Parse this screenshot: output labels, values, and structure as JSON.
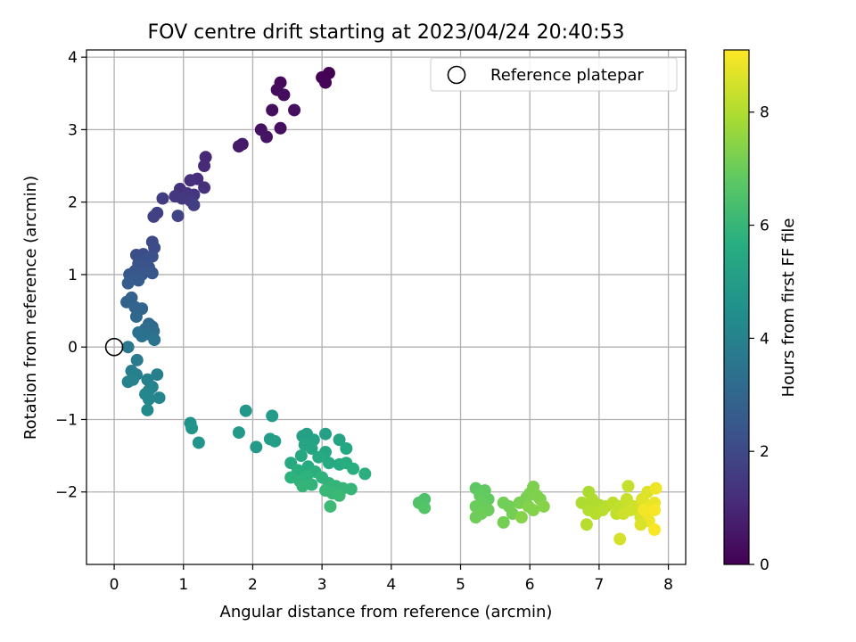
{
  "chart_data": {
    "type": "scatter",
    "title": "FOV centre drift starting at 2023/04/24 20:40:53",
    "xlabel": "Angular distance from reference (arcmin)",
    "ylabel": "Rotation from reference (arcmin)",
    "xlim": [
      -0.4,
      8.25
    ],
    "ylim": [
      -3.0,
      4.1
    ],
    "xticks": [
      0,
      1,
      2,
      3,
      4,
      5,
      6,
      7,
      8
    ],
    "yticks": [
      -2,
      -1,
      0,
      1,
      2,
      3,
      4
    ],
    "grid": true,
    "legend": {
      "position": "top-right",
      "entries": [
        "Reference platepar"
      ]
    },
    "reference_point": {
      "x": 0,
      "y": 0
    },
    "colorbar": {
      "label": "Hours from first FF file",
      "range": [
        0,
        9.1
      ],
      "ticks": [
        0,
        2,
        4,
        6,
        8
      ],
      "colormap": "viridis"
    },
    "points": [
      {
        "x": 3.1,
        "y": 3.78,
        "c": 0.0
      },
      {
        "x": 3.0,
        "y": 3.72,
        "c": 0.05
      },
      {
        "x": 3.05,
        "y": 3.65,
        "c": 0.1
      },
      {
        "x": 2.4,
        "y": 3.65,
        "c": 0.2
      },
      {
        "x": 2.35,
        "y": 3.55,
        "c": 0.25
      },
      {
        "x": 2.45,
        "y": 3.48,
        "c": 0.3
      },
      {
        "x": 2.28,
        "y": 3.27,
        "c": 0.35
      },
      {
        "x": 2.6,
        "y": 3.27,
        "c": 0.35
      },
      {
        "x": 2.4,
        "y": 3.02,
        "c": 0.4
      },
      {
        "x": 2.12,
        "y": 3.0,
        "c": 0.45
      },
      {
        "x": 2.2,
        "y": 2.9,
        "c": 0.5
      },
      {
        "x": 1.85,
        "y": 2.8,
        "c": 0.6
      },
      {
        "x": 1.8,
        "y": 2.77,
        "c": 0.65
      },
      {
        "x": 1.32,
        "y": 2.62,
        "c": 1.0
      },
      {
        "x": 1.3,
        "y": 2.5,
        "c": 1.05
      },
      {
        "x": 1.2,
        "y": 2.32,
        "c": 1.15
      },
      {
        "x": 1.1,
        "y": 2.3,
        "c": 1.2
      },
      {
        "x": 1.3,
        "y": 2.2,
        "c": 1.25
      },
      {
        "x": 0.95,
        "y": 2.18,
        "c": 1.3
      },
      {
        "x": 1.05,
        "y": 2.12,
        "c": 1.35
      },
      {
        "x": 1.15,
        "y": 2.1,
        "c": 1.4
      },
      {
        "x": 0.88,
        "y": 2.08,
        "c": 1.45
      },
      {
        "x": 0.98,
        "y": 2.05,
        "c": 1.5
      },
      {
        "x": 1.1,
        "y": 2.02,
        "c": 1.55
      },
      {
        "x": 0.7,
        "y": 2.05,
        "c": 1.6
      },
      {
        "x": 1.15,
        "y": 1.96,
        "c": 1.65
      },
      {
        "x": 0.62,
        "y": 1.85,
        "c": 1.7
      },
      {
        "x": 0.57,
        "y": 1.8,
        "c": 1.75
      },
      {
        "x": 0.92,
        "y": 1.81,
        "c": 1.8
      },
      {
        "x": 0.55,
        "y": 1.45,
        "c": 2.0
      },
      {
        "x": 0.58,
        "y": 1.37,
        "c": 2.05
      },
      {
        "x": 0.42,
        "y": 1.28,
        "c": 2.1
      },
      {
        "x": 0.32,
        "y": 1.27,
        "c": 2.15
      },
      {
        "x": 0.55,
        "y": 1.25,
        "c": 2.2
      },
      {
        "x": 0.45,
        "y": 1.2,
        "c": 2.25
      },
      {
        "x": 0.35,
        "y": 1.15,
        "c": 2.3
      },
      {
        "x": 0.5,
        "y": 1.1,
        "c": 2.35
      },
      {
        "x": 0.3,
        "y": 1.05,
        "c": 2.4
      },
      {
        "x": 0.22,
        "y": 1.0,
        "c": 2.45
      },
      {
        "x": 0.4,
        "y": 1.0,
        "c": 2.5
      },
      {
        "x": 0.55,
        "y": 1.02,
        "c": 2.5
      },
      {
        "x": 0.27,
        "y": 0.95,
        "c": 2.55
      },
      {
        "x": 0.35,
        "y": 0.92,
        "c": 2.6
      },
      {
        "x": 0.2,
        "y": 0.88,
        "c": 2.65
      },
      {
        "x": 0.25,
        "y": 0.68,
        "c": 2.8
      },
      {
        "x": 0.18,
        "y": 0.62,
        "c": 2.85
      },
      {
        "x": 0.3,
        "y": 0.55,
        "c": 2.9
      },
      {
        "x": 0.4,
        "y": 0.53,
        "c": 2.95
      },
      {
        "x": 0.32,
        "y": 0.42,
        "c": 3.0
      },
      {
        "x": 0.5,
        "y": 0.32,
        "c": 3.1
      },
      {
        "x": 0.55,
        "y": 0.28,
        "c": 3.15
      },
      {
        "x": 0.45,
        "y": 0.25,
        "c": 3.2
      },
      {
        "x": 0.57,
        "y": 0.22,
        "c": 3.25
      },
      {
        "x": 0.35,
        "y": 0.2,
        "c": 3.3
      },
      {
        "x": 0.48,
        "y": 0.18,
        "c": 3.35
      },
      {
        "x": 0.4,
        "y": 0.15,
        "c": 3.4
      },
      {
        "x": 0.58,
        "y": 0.1,
        "c": 3.45
      },
      {
        "x": 0.2,
        "y": 0.0,
        "c": 3.6
      },
      {
        "x": 0.33,
        "y": -0.18,
        "c": 3.75
      },
      {
        "x": 0.25,
        "y": -0.33,
        "c": 3.85
      },
      {
        "x": 0.32,
        "y": -0.38,
        "c": 3.9
      },
      {
        "x": 0.62,
        "y": -0.38,
        "c": 3.9
      },
      {
        "x": 0.48,
        "y": -0.45,
        "c": 3.95
      },
      {
        "x": 0.27,
        "y": -0.45,
        "c": 4.0
      },
      {
        "x": 0.2,
        "y": -0.48,
        "c": 4.0
      },
      {
        "x": 0.55,
        "y": -0.55,
        "c": 4.05
      },
      {
        "x": 0.5,
        "y": -0.6,
        "c": 4.1
      },
      {
        "x": 0.45,
        "y": -0.65,
        "c": 4.15
      },
      {
        "x": 0.65,
        "y": -0.7,
        "c": 4.15
      },
      {
        "x": 0.5,
        "y": -0.72,
        "c": 4.2
      },
      {
        "x": 0.48,
        "y": -0.87,
        "c": 4.3
      },
      {
        "x": 1.1,
        "y": -1.05,
        "c": 4.6
      },
      {
        "x": 1.12,
        "y": -1.12,
        "c": 4.65
      },
      {
        "x": 1.22,
        "y": -1.32,
        "c": 4.7
      },
      {
        "x": 1.9,
        "y": -0.88,
        "c": 4.8
      },
      {
        "x": 1.8,
        "y": -1.18,
        "c": 4.85
      },
      {
        "x": 2.05,
        "y": -1.38,
        "c": 4.9
      },
      {
        "x": 2.28,
        "y": -0.95,
        "c": 4.95
      },
      {
        "x": 2.25,
        "y": -1.27,
        "c": 5.0
      },
      {
        "x": 2.32,
        "y": -1.3,
        "c": 5.05
      },
      {
        "x": 2.78,
        "y": -1.2,
        "c": 5.1
      },
      {
        "x": 2.72,
        "y": -1.23,
        "c": 5.15
      },
      {
        "x": 3.05,
        "y": -1.2,
        "c": 5.15
      },
      {
        "x": 2.88,
        "y": -1.28,
        "c": 5.2
      },
      {
        "x": 3.25,
        "y": -1.28,
        "c": 5.25
      },
      {
        "x": 2.75,
        "y": -1.35,
        "c": 5.3
      },
      {
        "x": 2.85,
        "y": -1.4,
        "c": 5.35
      },
      {
        "x": 3.35,
        "y": -1.4,
        "c": 5.4
      },
      {
        "x": 3.05,
        "y": -1.45,
        "c": 5.4
      },
      {
        "x": 2.7,
        "y": -1.5,
        "c": 5.45
      },
      {
        "x": 2.95,
        "y": -1.52,
        "c": 5.5
      },
      {
        "x": 3.1,
        "y": -1.6,
        "c": 5.55
      },
      {
        "x": 2.55,
        "y": -1.6,
        "c": 5.55
      },
      {
        "x": 3.25,
        "y": -1.62,
        "c": 5.6
      },
      {
        "x": 2.8,
        "y": -1.65,
        "c": 5.6
      },
      {
        "x": 3.35,
        "y": -1.6,
        "c": 5.65
      },
      {
        "x": 2.65,
        "y": -1.7,
        "c": 5.7
      },
      {
        "x": 3.45,
        "y": -1.68,
        "c": 5.7
      },
      {
        "x": 2.9,
        "y": -1.72,
        "c": 5.75
      },
      {
        "x": 3.62,
        "y": -1.75,
        "c": 5.75
      },
      {
        "x": 2.78,
        "y": -1.78,
        "c": 5.8
      },
      {
        "x": 2.55,
        "y": -1.8,
        "c": 5.8
      },
      {
        "x": 3.0,
        "y": -1.8,
        "c": 5.85
      },
      {
        "x": 2.68,
        "y": -1.85,
        "c": 5.85
      },
      {
        "x": 3.1,
        "y": -1.88,
        "c": 5.9
      },
      {
        "x": 2.85,
        "y": -1.9,
        "c": 5.9
      },
      {
        "x": 2.72,
        "y": -1.92,
        "c": 5.95
      },
      {
        "x": 3.2,
        "y": -1.92,
        "c": 5.95
      },
      {
        "x": 3.3,
        "y": -1.95,
        "c": 6.0
      },
      {
        "x": 3.42,
        "y": -1.96,
        "c": 6.0
      },
      {
        "x": 3.05,
        "y": -1.98,
        "c": 6.05
      },
      {
        "x": 3.15,
        "y": -2.02,
        "c": 6.05
      },
      {
        "x": 3.25,
        "y": -2.05,
        "c": 6.1
      },
      {
        "x": 3.12,
        "y": -2.2,
        "c": 6.15
      },
      {
        "x": 4.48,
        "y": -2.1,
        "c": 6.5
      },
      {
        "x": 4.4,
        "y": -2.15,
        "c": 6.55
      },
      {
        "x": 4.48,
        "y": -2.22,
        "c": 6.6
      },
      {
        "x": 5.22,
        "y": -1.95,
        "c": 6.8
      },
      {
        "x": 5.35,
        "y": -1.98,
        "c": 6.85
      },
      {
        "x": 5.28,
        "y": -2.05,
        "c": 6.9
      },
      {
        "x": 5.4,
        "y": -2.1,
        "c": 6.9
      },
      {
        "x": 5.3,
        "y": -2.15,
        "c": 6.95
      },
      {
        "x": 5.22,
        "y": -2.2,
        "c": 7.0
      },
      {
        "x": 5.4,
        "y": -2.25,
        "c": 7.0
      },
      {
        "x": 5.3,
        "y": -2.3,
        "c": 7.05
      },
      {
        "x": 5.22,
        "y": -2.35,
        "c": 7.05
      },
      {
        "x": 5.62,
        "y": -2.15,
        "c": 7.1
      },
      {
        "x": 5.7,
        "y": -2.2,
        "c": 7.1
      },
      {
        "x": 5.75,
        "y": -2.3,
        "c": 7.15
      },
      {
        "x": 5.62,
        "y": -2.42,
        "c": 7.15
      },
      {
        "x": 5.85,
        "y": -2.15,
        "c": 7.2
      },
      {
        "x": 5.95,
        "y": -2.08,
        "c": 7.2
      },
      {
        "x": 6.05,
        "y": -1.93,
        "c": 7.25
      },
      {
        "x": 6.0,
        "y": -2.02,
        "c": 7.25
      },
      {
        "x": 6.1,
        "y": -2.05,
        "c": 7.3
      },
      {
        "x": 6.15,
        "y": -2.1,
        "c": 7.3
      },
      {
        "x": 5.98,
        "y": -2.2,
        "c": 7.35
      },
      {
        "x": 6.05,
        "y": -2.25,
        "c": 7.35
      },
      {
        "x": 6.2,
        "y": -2.2,
        "c": 7.4
      },
      {
        "x": 5.88,
        "y": -2.35,
        "c": 7.4
      },
      {
        "x": 6.85,
        "y": -2.0,
        "c": 7.9
      },
      {
        "x": 6.75,
        "y": -2.15,
        "c": 7.95
      },
      {
        "x": 6.9,
        "y": -2.1,
        "c": 8.0
      },
      {
        "x": 7.0,
        "y": -2.18,
        "c": 8.0
      },
      {
        "x": 6.85,
        "y": -2.25,
        "c": 8.05
      },
      {
        "x": 7.1,
        "y": -2.2,
        "c": 8.05
      },
      {
        "x": 6.95,
        "y": -2.3,
        "c": 8.1
      },
      {
        "x": 6.82,
        "y": -2.45,
        "c": 8.1
      },
      {
        "x": 7.05,
        "y": -2.25,
        "c": 8.15
      },
      {
        "x": 7.2,
        "y": -2.15,
        "c": 8.2
      },
      {
        "x": 7.3,
        "y": -2.2,
        "c": 8.25
      },
      {
        "x": 7.25,
        "y": -2.3,
        "c": 8.25
      },
      {
        "x": 7.42,
        "y": -1.92,
        "c": 8.3
      },
      {
        "x": 7.4,
        "y": -2.1,
        "c": 8.35
      },
      {
        "x": 7.5,
        "y": -2.2,
        "c": 8.4
      },
      {
        "x": 7.35,
        "y": -2.3,
        "c": 8.4
      },
      {
        "x": 7.55,
        "y": -2.25,
        "c": 8.45
      },
      {
        "x": 7.3,
        "y": -2.65,
        "c": 8.5
      },
      {
        "x": 7.6,
        "y": -2.35,
        "c": 8.55
      },
      {
        "x": 7.62,
        "y": -2.1,
        "c": 8.6
      },
      {
        "x": 7.7,
        "y": -2.0,
        "c": 8.65
      },
      {
        "x": 7.65,
        "y": -2.15,
        "c": 8.7
      },
      {
        "x": 7.75,
        "y": -2.2,
        "c": 8.75
      },
      {
        "x": 7.7,
        "y": -2.3,
        "c": 8.8
      },
      {
        "x": 7.8,
        "y": -2.15,
        "c": 8.85
      },
      {
        "x": 7.82,
        "y": -1.95,
        "c": 8.9
      },
      {
        "x": 7.72,
        "y": -2.4,
        "c": 8.9
      },
      {
        "x": 7.8,
        "y": -2.25,
        "c": 9.0
      },
      {
        "x": 7.8,
        "y": -2.52,
        "c": 9.05
      },
      {
        "x": 7.6,
        "y": -2.45,
        "c": 8.6
      },
      {
        "x": 7.45,
        "y": -2.25,
        "c": 8.45
      },
      {
        "x": 7.65,
        "y": -2.25,
        "c": 8.95
      }
    ]
  }
}
